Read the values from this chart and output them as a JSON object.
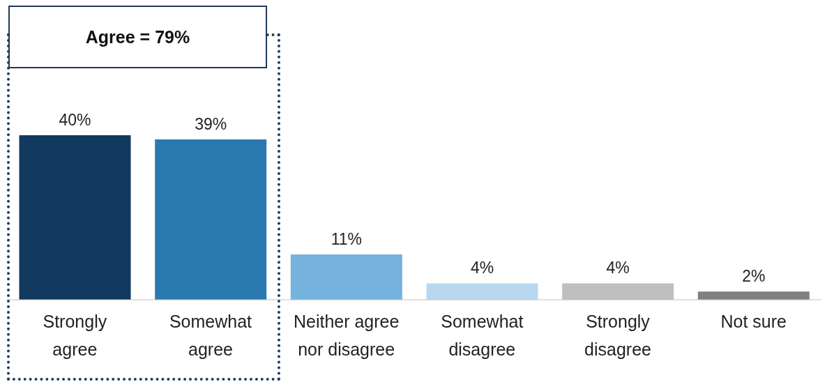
{
  "chart_data": {
    "type": "bar",
    "categories": [
      "Strongly agree",
      "Somewhat agree",
      "Neither agree nor disagree",
      "Somewhat disagree",
      "Strongly disagree",
      "Not sure"
    ],
    "values": [
      40,
      39,
      11,
      4,
      4,
      2
    ],
    "colors": [
      "#12395f",
      "#2a7ab0",
      "#76b3de",
      "#b9d8ef",
      "#bfbfbf",
      "#808080"
    ],
    "value_labels": [
      "40%",
      "39%",
      "11%",
      "4%",
      "4%",
      "2%"
    ],
    "annotations": [
      "Agree = 79%"
    ]
  }
}
